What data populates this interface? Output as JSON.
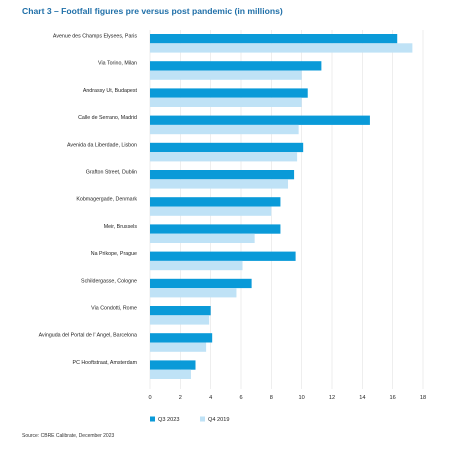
{
  "chart_data": {
    "type": "bar",
    "orientation": "horizontal",
    "title": "Chart 3 – Footfall figures pre versus post pandemic (in millions)",
    "categories": [
      "Avenue des Champs Elysees, Paris",
      "Via Torino, Milan",
      "Andrassy Ut, Budapest",
      "Calle de Serrano, Madrid",
      "Avenida da Liberdade, Lisbon",
      "Grafton Street, Dublin",
      "Kobmagergade, Denmark",
      "Meir, Brussels",
      "Na Prikope, Prague",
      "Schildergasse, Cologne",
      "Via Condotti, Rome",
      "Avinguda del Portal de l' Angel, Barcelona",
      "PC Hooftstraat, Amsterdam"
    ],
    "series": [
      {
        "name": "Q3 2023",
        "color": "#0a9ad8",
        "values": [
          16.3,
          11.3,
          10.4,
          14.5,
          10.1,
          9.5,
          8.6,
          8.6,
          9.6,
          6.7,
          4.0,
          4.1,
          3.0
        ]
      },
      {
        "name": "Q4 2019",
        "color": "#bfe2f6",
        "values": [
          17.3,
          10.0,
          10.0,
          9.8,
          9.7,
          9.1,
          8.0,
          6.9,
          6.1,
          5.7,
          3.9,
          3.7,
          2.7
        ]
      }
    ],
    "xlim": [
      0,
      18
    ],
    "xticks": [
      "0",
      "2",
      "4",
      "6",
      "8",
      "10",
      "12",
      "14",
      "16",
      "18"
    ],
    "grid": "vertical",
    "legend_position": "bottom"
  },
  "footer": {
    "source": "Source: CBRE Calibrate, December 2023"
  }
}
